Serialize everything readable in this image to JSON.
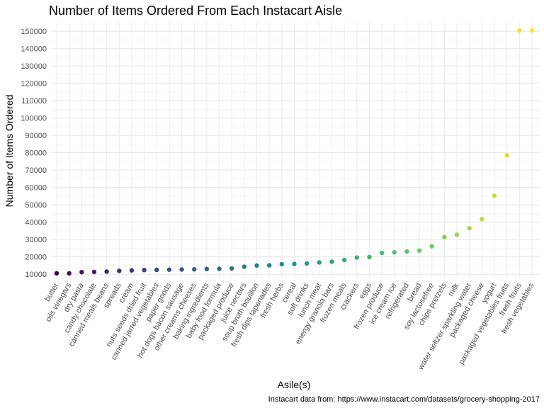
{
  "chart_data": {
    "type": "scatter",
    "title": "Number of Items Ordered From Each Instacart Aisle",
    "xlabel": "Asile(s)",
    "ylabel": "Number of Items Ordered",
    "caption": "Instacart data from: https://www.instacart.com/datasets/grocery-shopping-2017",
    "ylim": [
      8000,
      155000
    ],
    "yticks": [
      10000,
      20000,
      30000,
      40000,
      50000,
      60000,
      70000,
      80000,
      90000,
      100000,
      110000,
      120000,
      130000,
      140000,
      150000
    ],
    "ytick_labels": [
      "10000",
      "20000",
      "30000",
      "40000",
      "50000",
      "60000",
      "70000",
      "80000",
      "90000",
      "100000",
      "110000",
      "120000",
      "130000",
      "140000",
      "150000"
    ],
    "grid": true,
    "legend": "none",
    "color_scale": "viridis",
    "colors": [
      "#440154",
      "#3b528b",
      "#21908c",
      "#5dc863",
      "#fde725"
    ],
    "categories": [
      "butter",
      "oils vinegars",
      "dry pasta",
      "candy chocolate",
      "canned meals beans",
      "spreads",
      "cream",
      "nuts seeds dried fruit",
      "canned jarred vegetables",
      "paper goods",
      "hot dogs bacon sausage",
      "other creams cheeses",
      "baking ingredients",
      "baby food formula",
      "packaged produce",
      "juice nectars",
      "soup broth bouillon",
      "fresh dips tapenades",
      "fresh herbs",
      "cereal",
      "soft drinks",
      "lunch meat",
      "energy granola bars",
      "frozen meals",
      "crackers",
      "eggs",
      "frozen produce",
      "ice cream ice",
      "refrigerated",
      "bread",
      "soy lactosefree",
      "chips pretzels",
      "milk",
      "water seltzer sparkling water",
      "packaged cheese",
      "yogurt",
      "packaged vegetables fruits",
      "fresh fruits",
      "fresh vegetables"
    ],
    "values": [
      10500,
      10500,
      11200,
      11300,
      11500,
      11900,
      12200,
      12400,
      12500,
      12600,
      12700,
      12800,
      13000,
      13100,
      13300,
      14300,
      15000,
      15100,
      15800,
      15900,
      16200,
      16800,
      17200,
      18200,
      19600,
      19900,
      22300,
      22600,
      23100,
      23600,
      26100,
      31400,
      32700,
      36500,
      41700,
      55200,
      78500,
      150500,
      150500
    ]
  }
}
